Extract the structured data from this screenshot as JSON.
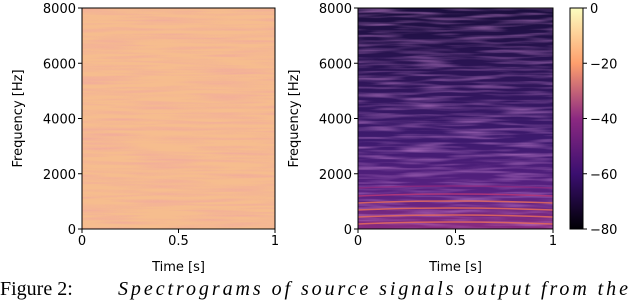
{
  "chart_data": [
    {
      "type": "heatmap",
      "xlabel": "Time [s]",
      "ylabel": "Frequency [Hz]",
      "xlim": [
        0,
        1
      ],
      "ylim": [
        0,
        8000
      ],
      "xticks": [
        0,
        0.5,
        1
      ],
      "yticks": [
        0,
        2000,
        4000,
        6000,
        8000
      ]
    },
    {
      "type": "heatmap",
      "xlabel": "Time [s]",
      "ylabel": "Frequency [Hz]",
      "xlim": [
        0,
        1
      ],
      "ylim": [
        0,
        8000
      ],
      "xticks": [
        0,
        0.5,
        1
      ],
      "yticks": [
        0,
        2000,
        4000,
        6000,
        8000
      ],
      "colorbar": {
        "clim": [
          -80,
          0
        ],
        "ticks": [
          0,
          {
            "value": -20,
            "label": "−20"
          },
          {
            "value": -40,
            "label": "−40"
          },
          {
            "value": -60,
            "label": "−60"
          },
          {
            "value": -80,
            "label": "−80"
          }
        ]
      }
    }
  ],
  "caption": {
    "label": "Figure 2:",
    "text": "Spectrograms of source signals output from the"
  }
}
